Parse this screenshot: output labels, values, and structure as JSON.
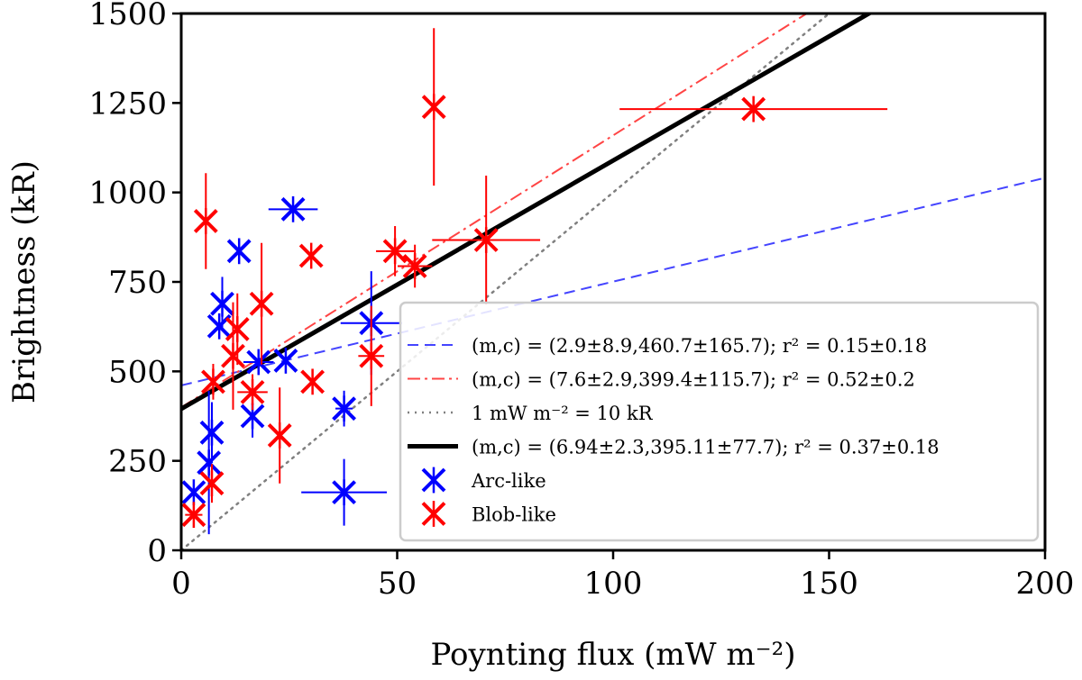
{
  "chart_data": {
    "type": "scatter",
    "xlabel": "Poynting flux (mW m⁻²)",
    "ylabel": "Brightness (kR)",
    "xlim": [
      0,
      200
    ],
    "ylim": [
      0,
      1500
    ],
    "xticks": [
      "0",
      "50",
      "100",
      "150",
      "200"
    ],
    "yticks": [
      "0",
      "250",
      "500",
      "750",
      "1000",
      "1250",
      "1500"
    ],
    "grid": false,
    "legend_position": "lower-right",
    "series": [
      {
        "name": "Arc-like",
        "color": "#0000ff",
        "marker": "x-star",
        "points": [
          {
            "x": 25.9,
            "y": 953,
            "xerr": 5.7,
            "yerr": 0
          },
          {
            "x": 13.4,
            "y": 836,
            "xerr": 0,
            "yerr": 0
          },
          {
            "x": 9.5,
            "y": 689,
            "xerr": 0,
            "yerr": 75
          },
          {
            "x": 8.8,
            "y": 626,
            "xerr": 0,
            "yerr": 0
          },
          {
            "x": 17.9,
            "y": 526,
            "xerr": 3.5,
            "yerr": 0
          },
          {
            "x": 24.2,
            "y": 530,
            "xerr": 0,
            "yerr": 0
          },
          {
            "x": 44.0,
            "y": 635,
            "xerr": 7.1,
            "yerr": 145
          },
          {
            "x": 16.5,
            "y": 375,
            "xerr": 0,
            "yerr": 60
          },
          {
            "x": 37.7,
            "y": 396,
            "xerr": 2,
            "yerr": 50
          },
          {
            "x": 7.1,
            "y": 329,
            "xerr": 0,
            "yerr": 85
          },
          {
            "x": 6.4,
            "y": 245,
            "xerr": 0,
            "yerr": 200
          },
          {
            "x": 2.9,
            "y": 162,
            "xerr": 0,
            "yerr": 0
          },
          {
            "x": 37.7,
            "y": 162,
            "xerr": 9.9,
            "yerr": 93
          }
        ]
      },
      {
        "name": "Blob-like",
        "color": "#ff0000",
        "marker": "x-star",
        "points": [
          {
            "x": 5.7,
            "y": 920,
            "xerr": 0,
            "yerr": 134
          },
          {
            "x": 30.1,
            "y": 823,
            "xerr": 0,
            "yerr": 0
          },
          {
            "x": 18.6,
            "y": 689,
            "xerr": 0,
            "yerr": 170
          },
          {
            "x": 13.0,
            "y": 618,
            "xerr": 0,
            "yerr": 100
          },
          {
            "x": 12.0,
            "y": 543,
            "xerr": 0,
            "yerr": 150
          },
          {
            "x": 7.4,
            "y": 471,
            "xerr": 0,
            "yerr": 50
          },
          {
            "x": 16.5,
            "y": 442,
            "xerr": 3.5,
            "yerr": 50
          },
          {
            "x": 30.4,
            "y": 471,
            "xerr": 0,
            "yerr": 0
          },
          {
            "x": 22.8,
            "y": 321,
            "xerr": 0,
            "yerr": 134
          },
          {
            "x": 44.0,
            "y": 543,
            "xerr": 3,
            "yerr": 140
          },
          {
            "x": 7.1,
            "y": 187,
            "xerr": 0,
            "yerr": 54
          },
          {
            "x": 2.9,
            "y": 99,
            "xerr": 2,
            "yerr": 0
          },
          {
            "x": 49.5,
            "y": 836,
            "xerr": 4.4,
            "yerr": 70
          },
          {
            "x": 54.1,
            "y": 794,
            "xerr": 4,
            "yerr": 60
          },
          {
            "x": 58.5,
            "y": 1239,
            "xerr": 0,
            "yerr": 220
          },
          {
            "x": 70.6,
            "y": 867,
            "xerr": 12.5,
            "yerr": 180
          },
          {
            "x": 132.5,
            "y": 1233,
            "xerr": 31,
            "yerr": 0
          }
        ]
      }
    ],
    "lines": [
      {
        "label": "(m,c) = (2.9±8.9,460.7±165.7); r² = 0.15±0.18",
        "m": 2.9,
        "c": 460.7,
        "color": "#4444ff",
        "style": "dashed"
      },
      {
        "label": "(m,c) = (7.6±2.9,399.4±115.7); r² = 0.52±0.2",
        "m": 7.6,
        "c": 399.4,
        "color": "#ff4444",
        "style": "dashdot"
      },
      {
        "label": "1 mW m⁻² = 10 kR",
        "m": 10,
        "c": 0,
        "color": "#808080",
        "style": "dotted"
      },
      {
        "label": "(m,c) = (6.94±2.3,395.11±77.7); r² = 0.37±0.18",
        "m": 6.94,
        "c": 395.11,
        "color": "#000000",
        "style": "solid"
      }
    ]
  }
}
